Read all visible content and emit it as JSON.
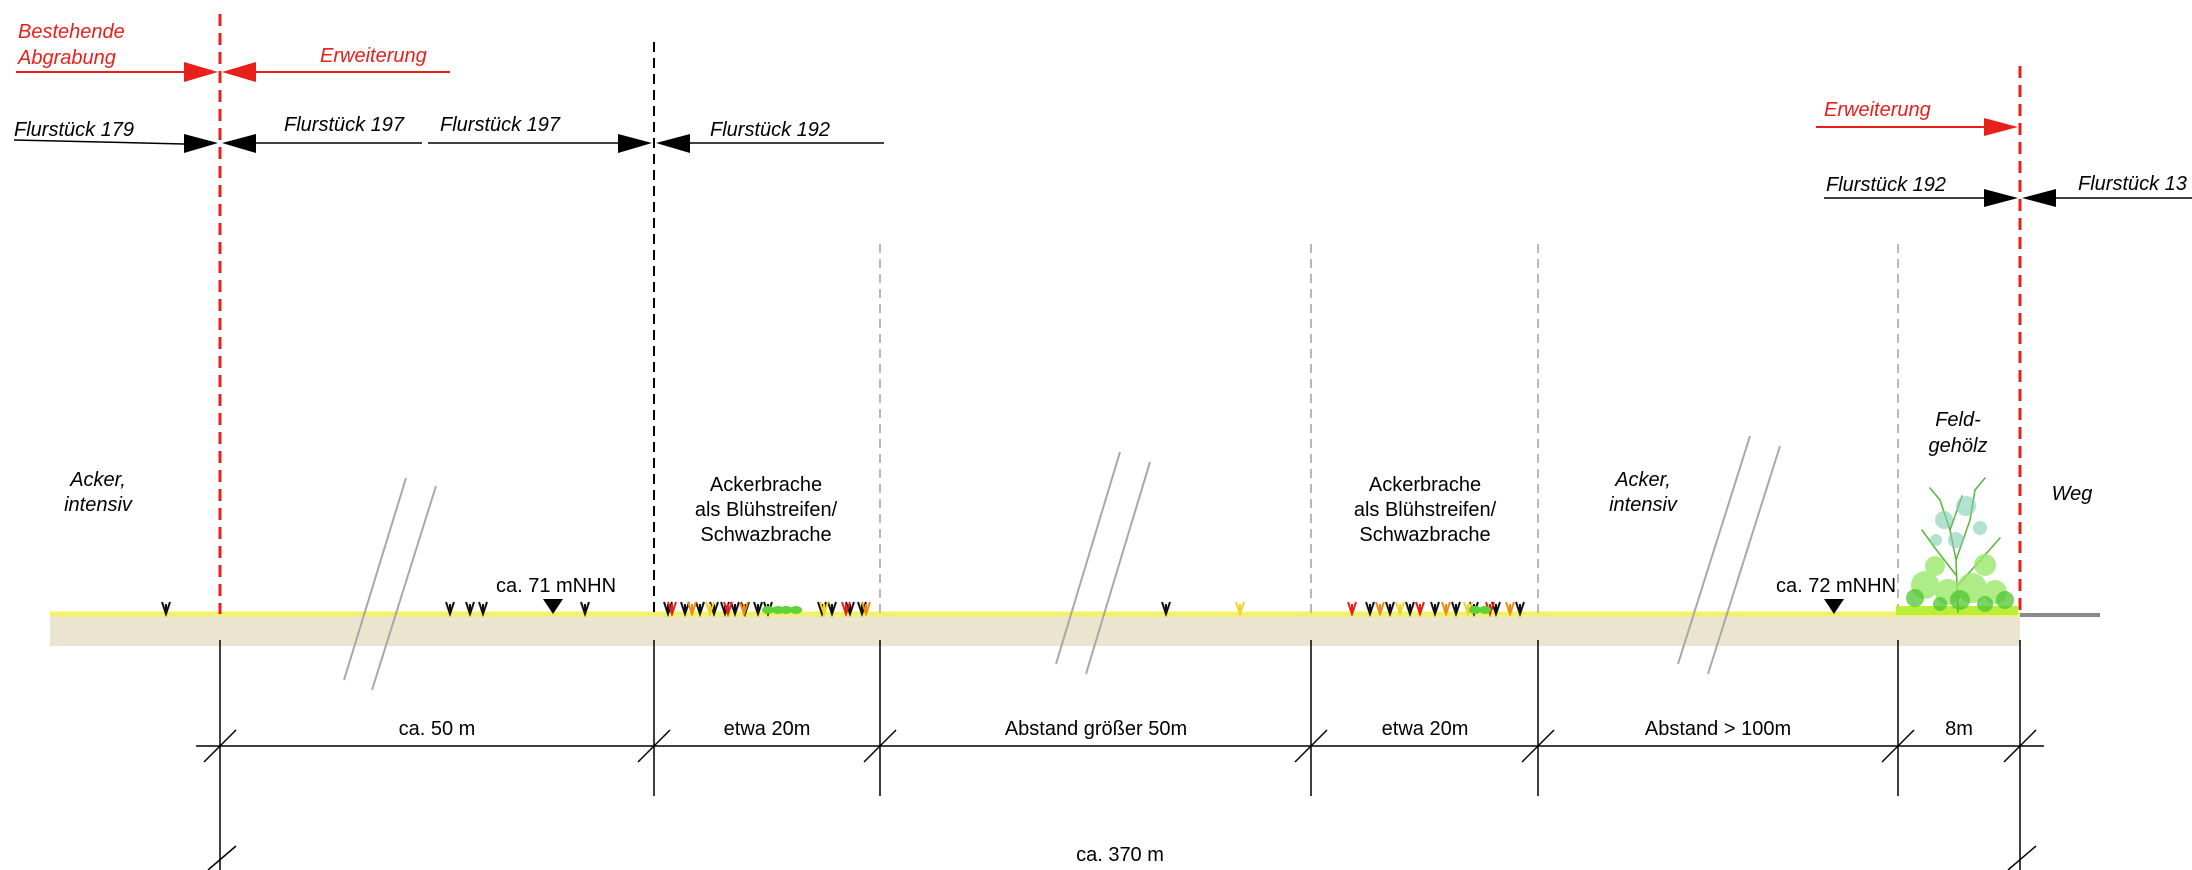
{
  "colors": {
    "boundary_red": "#e8201c",
    "ground": "#ebe4cf",
    "ground_top": "#f3f06a",
    "guide_gray": "#b8b8b8",
    "shrub_green": "#6ed23a",
    "path_gray": "#8a8a8a"
  },
  "top_left": {
    "existing_pit_label": "Bestehende\nAbgrabung",
    "existing_pit_line1": "Bestehende",
    "existing_pit_line2": "Abgrabung",
    "extension_label": "Erweiterung"
  },
  "parcels_left": {
    "p179": "Flurstück 179",
    "p197_a": "Flurstück 197",
    "p197_b": "Flurstück 197",
    "p192": "Flurstück 192"
  },
  "top_right": {
    "extension_label": "Erweiterung",
    "p192": "Flurstück 192",
    "p13x": "Flurstück 13"
  },
  "land_uses": {
    "acker_left_1": "Acker,",
    "acker_left_2": "intensiv",
    "brache1_1": "Ackerbrache",
    "brache1_2": "als Blühstreifen/",
    "brache1_3": "Schwazbrache",
    "brache2_1": "Ackerbrache",
    "brache2_2": "als Blühstreifen/",
    "brache2_3": "Schwazbrache",
    "acker_right_1": "Acker,",
    "acker_right_2": "intensiv",
    "feld_1": "Feld-",
    "feld_2": "gehölz",
    "weg": "Weg"
  },
  "elevations": {
    "left": "ca. 71 mNHN",
    "right": "ca. 72 mNHN"
  },
  "dimensions": {
    "d1": "ca. 50 m",
    "d2": "etwa 20m",
    "d3": "Abstand größer 50m",
    "d4": "etwa 20m",
    "d5": "Abstand > 100m",
    "d6": "8m",
    "total": "ca. 370 m"
  }
}
